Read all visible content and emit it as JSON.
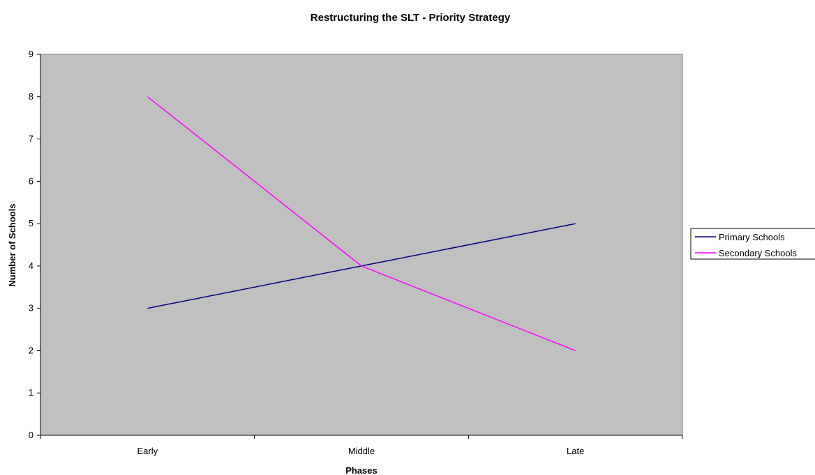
{
  "chart_data": {
    "type": "line",
    "title": "Restructuring the SLT - Priority Strategy",
    "xlabel": "Phases",
    "ylabel": "Number of Schools",
    "categories": [
      "Early",
      "Middle",
      "Late"
    ],
    "ylim": [
      0,
      9
    ],
    "yticks": [
      0,
      1,
      2,
      3,
      4,
      5,
      6,
      7,
      8,
      9
    ],
    "grid": false,
    "legend_position": "right",
    "plot_background": "#c0c0c0",
    "series": [
      {
        "name": "Primary Schools",
        "values": [
          3,
          4,
          5
        ],
        "color": "#000080"
      },
      {
        "name": "Secondary Schools",
        "values": [
          8,
          4,
          2
        ],
        "color": "#ff00ff"
      }
    ]
  }
}
